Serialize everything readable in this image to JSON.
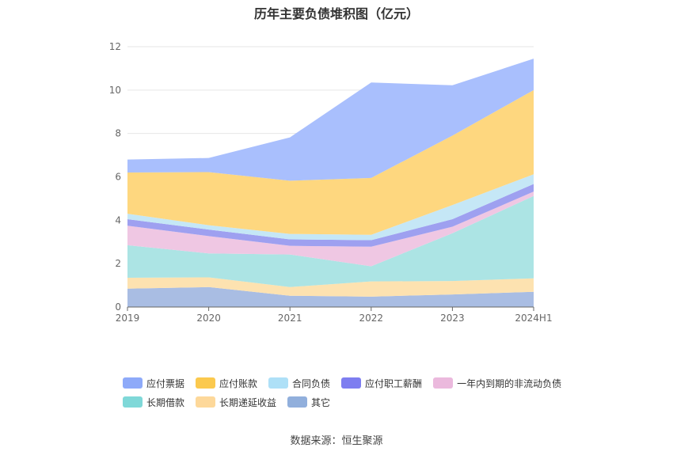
{
  "chart_data": {
    "type": "area",
    "stacked": true,
    "title": "历年主要负债堆积图（亿元）",
    "categories": [
      "2019",
      "2020",
      "2021",
      "2022",
      "2023",
      "2024H1"
    ],
    "ylim": [
      0,
      12
    ],
    "yticks": [
      0,
      2,
      4,
      6,
      8,
      10,
      12
    ],
    "grid": true,
    "legend_position": "bottom",
    "series": [
      {
        "name": "其它",
        "color": "#a9bde3",
        "values": [
          0.85,
          0.92,
          0.52,
          0.48,
          0.58,
          0.7
        ]
      },
      {
        "name": "长期递延收益",
        "color": "#fde2b0",
        "values": [
          0.5,
          0.45,
          0.4,
          0.7,
          0.62,
          0.62
        ]
      },
      {
        "name": "长期借款",
        "color": "#ace4e4",
        "values": [
          1.5,
          1.1,
          1.5,
          0.7,
          2.2,
          3.8
        ]
      },
      {
        "name": "一年内到期的非流动负债",
        "color": "#efc7e3",
        "values": [
          0.9,
          0.8,
          0.4,
          0.9,
          0.3,
          0.2
        ]
      },
      {
        "name": "应付职工薪酬",
        "color": "#9ea0f0",
        "values": [
          0.3,
          0.3,
          0.3,
          0.3,
          0.35,
          0.35
        ]
      },
      {
        "name": "合同负债",
        "color": "#c5e7f6",
        "values": [
          0.25,
          0.2,
          0.25,
          0.25,
          0.65,
          0.45
        ]
      },
      {
        "name": "应付账款",
        "color": "#fed77f",
        "values": [
          1.9,
          2.45,
          2.45,
          2.62,
          3.2,
          3.88
        ]
      },
      {
        "name": "应付票据",
        "color": "#a9bffd",
        "values": [
          0.6,
          0.65,
          2.0,
          4.4,
          2.32,
          1.45
        ]
      }
    ]
  },
  "legend": {
    "row1": [
      {
        "label": "应付票据",
        "color": "#8eaaf9"
      },
      {
        "label": "应付账款",
        "color": "#fbc94e"
      },
      {
        "label": "合同负债",
        "color": "#aee0f7"
      },
      {
        "label": "应付职工薪酬",
        "color": "#7e7ef0"
      },
      {
        "label": "一年内到期的非流动负债",
        "color": "#ebb9dd"
      }
    ],
    "row2": [
      {
        "label": "长期借款",
        "color": "#7fd8d8"
      },
      {
        "label": "长期递延收益",
        "color": "#fdd89a"
      },
      {
        "label": "其它",
        "color": "#91afdc"
      }
    ]
  },
  "source": "数据来源：恒生聚源"
}
